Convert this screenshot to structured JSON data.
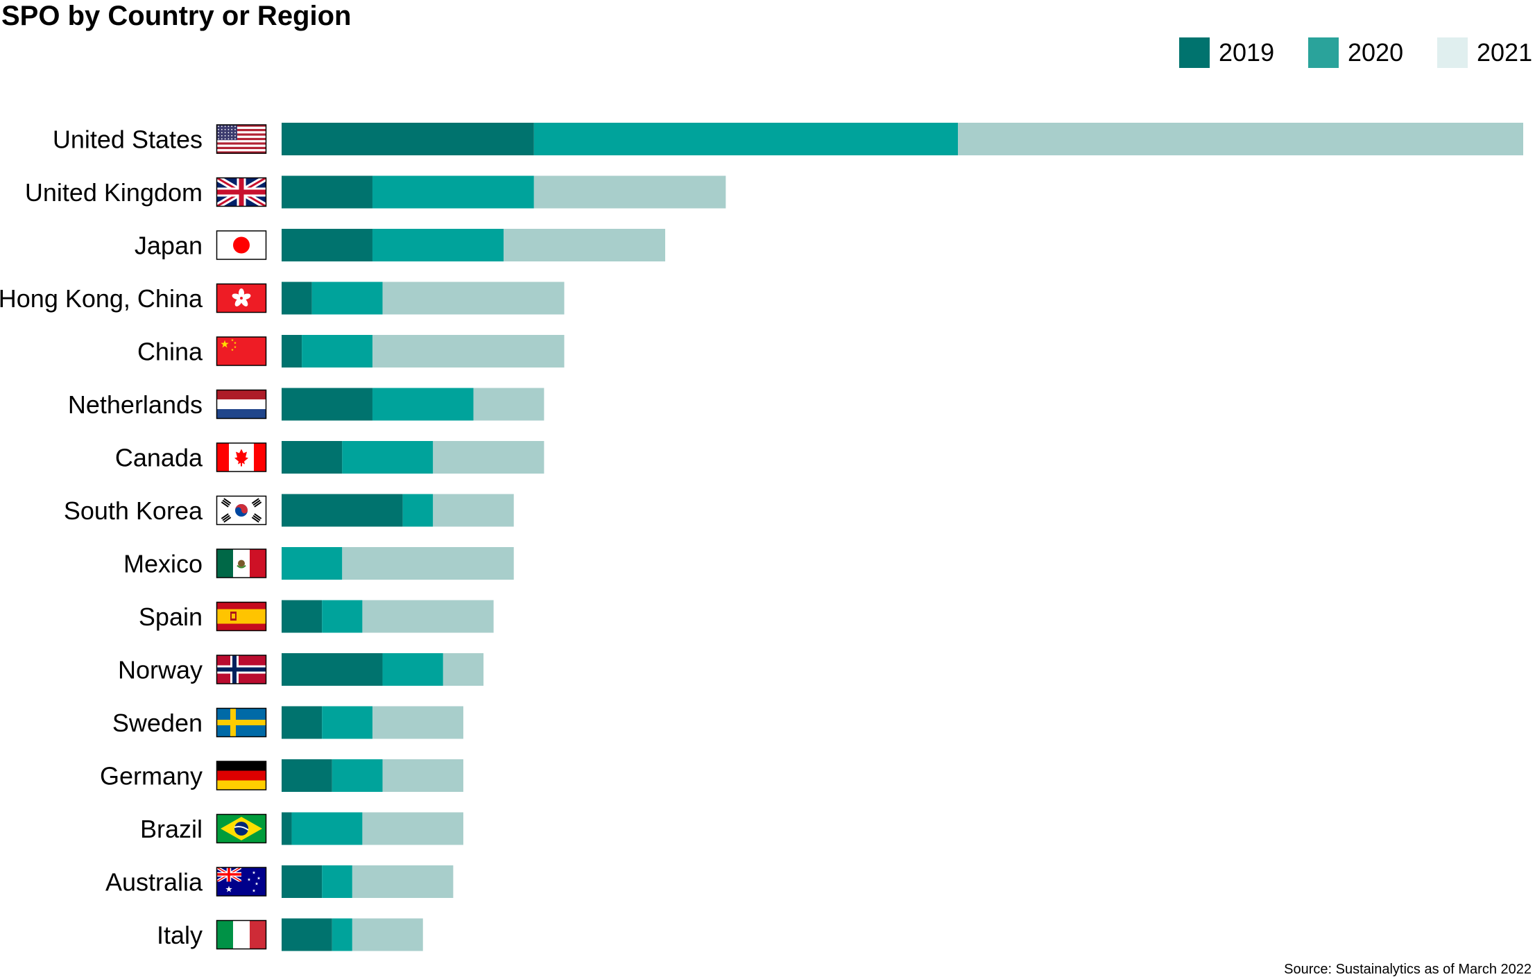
{
  "chart_data": {
    "type": "bar",
    "orientation": "horizontal",
    "stacked": true,
    "title": "SPO by Country or Region",
    "source": "Source: Sustainalytics as of March 2022",
    "legend_position": "top-right",
    "grid": false,
    "categories": [
      "United States",
      "United Kingdom",
      "Japan",
      "Hong Kong, China",
      "China",
      "Netherlands",
      "Canada",
      "South Korea",
      "Mexico",
      "Spain",
      "Norway",
      "Sweden",
      "Germany",
      "Brazil",
      "Australia",
      "Italy"
    ],
    "flags": [
      "us-flag-icon",
      "uk-flag-icon",
      "japan-flag-icon",
      "hong-kong-flag-icon",
      "china-flag-icon",
      "netherlands-flag-icon",
      "canada-flag-icon",
      "south-korea-flag-icon",
      "mexico-flag-icon",
      "spain-flag-icon",
      "norway-flag-icon",
      "sweden-flag-icon",
      "germany-flag-icon",
      "brazil-flag-icon",
      "australia-flag-icon",
      "italy-flag-icon"
    ],
    "series": [
      {
        "name": "2019",
        "color": "#00736e",
        "values": [
          25,
          9,
          9,
          3,
          2,
          9,
          6,
          12,
          0,
          4,
          10,
          4,
          5,
          1,
          4,
          5
        ]
      },
      {
        "name": "2020",
        "color": "#00a39b",
        "values": [
          42,
          16,
          13,
          7,
          7,
          10,
          9,
          3,
          6,
          4,
          6,
          5,
          5,
          7,
          3,
          2
        ]
      },
      {
        "name": "2021",
        "color": "#a8cecb",
        "values": [
          56,
          19,
          16,
          18,
          19,
          7,
          11,
          8,
          17,
          13,
          4,
          9,
          8,
          10,
          10,
          7
        ]
      }
    ],
    "legend_colors": [
      "#00736e",
      "#2aa39b",
      "#e0efef"
    ],
    "xlim": [
      0,
      123
    ]
  }
}
